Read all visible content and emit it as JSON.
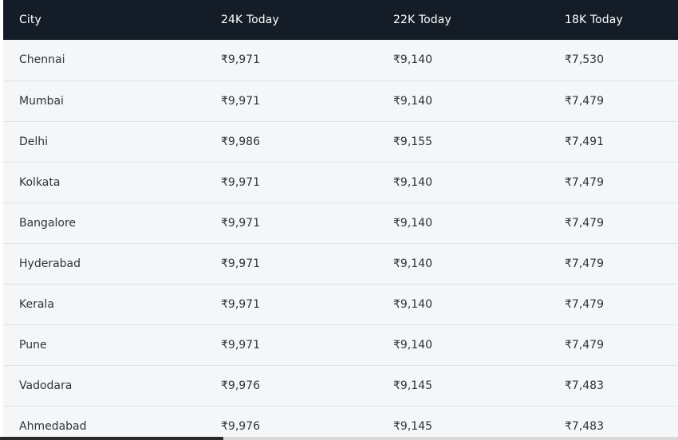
{
  "table": {
    "headers": [
      "City",
      "24K Today",
      "22K Today",
      "18K Today"
    ],
    "rows": [
      [
        "Chennai",
        "₹9,971",
        "₹9,140",
        "₹7,530"
      ],
      [
        "Mumbai",
        "₹9,971",
        "₹9,140",
        "₹7,479"
      ],
      [
        "Delhi",
        "₹9,986",
        "₹9,155",
        "₹7,491"
      ],
      [
        "Kolkata",
        "₹9,971",
        "₹9,140",
        "₹7,479"
      ],
      [
        "Bangalore",
        "₹9,971",
        "₹9,140",
        "₹7,479"
      ],
      [
        "Hyderabad",
        "₹9,971",
        "₹9,140",
        "₹7,479"
      ],
      [
        "Kerala",
        "₹9,971",
        "₹9,140",
        "₹7,479"
      ],
      [
        "Pune",
        "₹9,971",
        "₹9,140",
        "₹7,479"
      ],
      [
        "Vadodara",
        "₹9,976",
        "₹9,145",
        "₹7,483"
      ],
      [
        "Ahmedabad",
        "₹9,976",
        "₹9,145",
        "₹7,483"
      ]
    ]
  },
  "colors": {
    "header_bg": "#141c27",
    "row_bg": "#f4f6f8",
    "divider": "#e0e3e7"
  }
}
